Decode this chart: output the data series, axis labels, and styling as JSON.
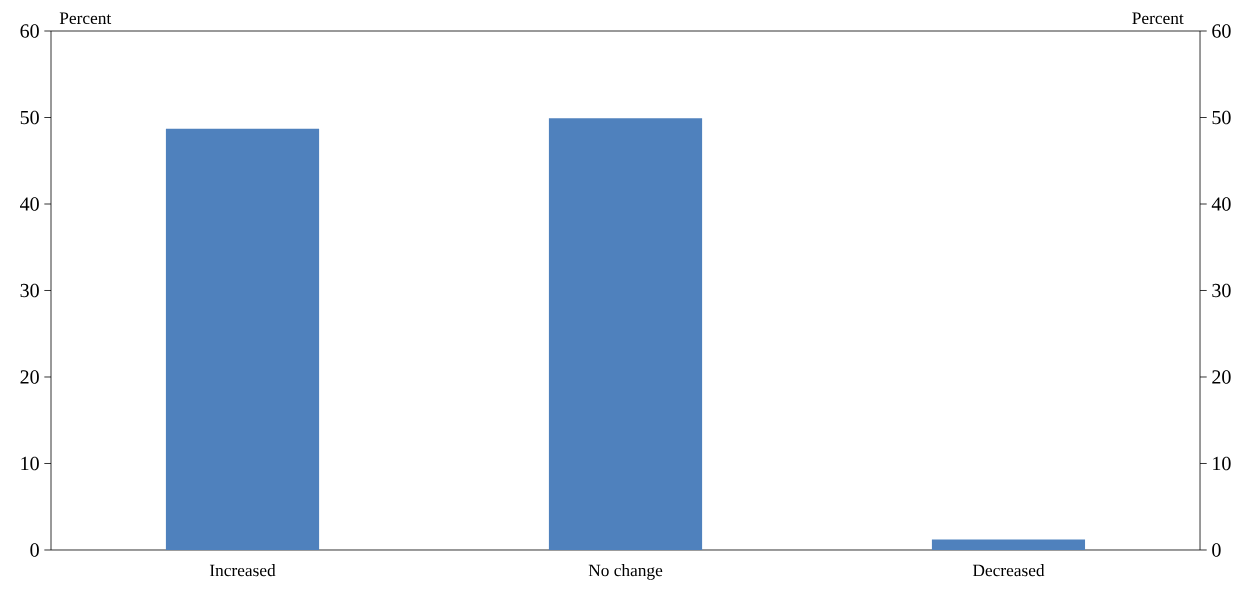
{
  "chart_data": {
    "type": "bar",
    "categories": [
      "Increased",
      "No change",
      "Decreased"
    ],
    "values": [
      48.7,
      49.9,
      1.2
    ],
    "color": "#4f81bd",
    "ylabel": "Percent",
    "y2label": "Percent",
    "ylim": [
      0,
      60
    ],
    "yticks": [
      0,
      10,
      20,
      30,
      40,
      50,
      60
    ],
    "y2lim": [
      0,
      60
    ],
    "y2ticks": [
      0,
      10,
      20,
      30,
      40,
      50,
      60
    ]
  }
}
